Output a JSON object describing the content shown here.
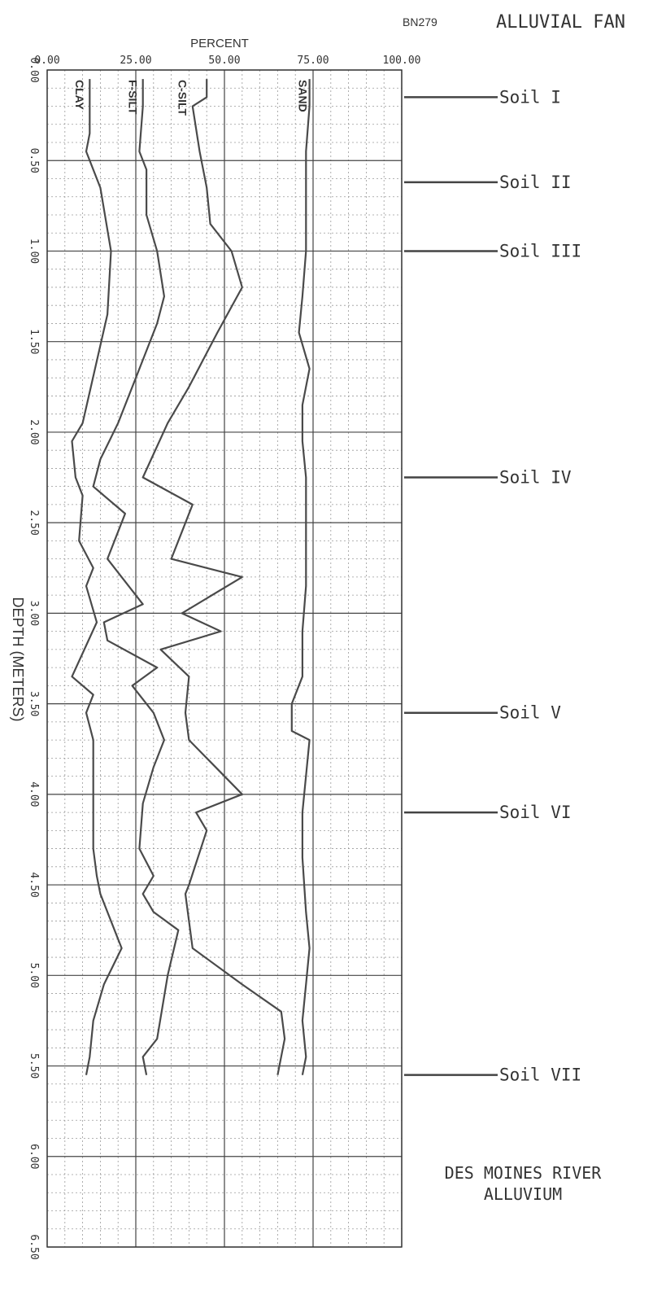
{
  "header": {
    "site_id": "BN279",
    "title": "ALLUVIAL FAN"
  },
  "chart_data": {
    "type": "line",
    "xlabel": "PERCENT",
    "ylabel": "DEPTH (METERS)",
    "xlim": [
      0,
      100
    ],
    "ylim": [
      0,
      6.5
    ],
    "x_ticks": [
      "0.00",
      "25.00",
      "50.00",
      "75.00",
      "100.00"
    ],
    "y_ticks": [
      "0.00",
      "0.50",
      "1.00",
      "1.50",
      "2.00",
      "2.50",
      "3.00",
      "3.50",
      "4.00",
      "4.50",
      "5.00",
      "5.50",
      "6.00",
      "6.50"
    ],
    "series": [
      {
        "name": "CLAY",
        "points": [
          [
            12,
            0.05
          ],
          [
            12,
            0.35
          ],
          [
            11,
            0.45
          ],
          [
            15,
            0.65
          ],
          [
            18,
            1.0
          ],
          [
            17,
            1.35
          ],
          [
            10,
            1.95
          ],
          [
            7,
            2.05
          ],
          [
            8,
            2.25
          ],
          [
            10,
            2.35
          ],
          [
            9,
            2.6
          ],
          [
            13,
            2.75
          ],
          [
            11,
            2.85
          ],
          [
            14,
            3.05
          ],
          [
            7,
            3.35
          ],
          [
            13,
            3.45
          ],
          [
            11,
            3.55
          ],
          [
            13,
            3.7
          ],
          [
            13,
            4.1
          ],
          [
            13,
            4.3
          ],
          [
            14,
            4.45
          ],
          [
            15,
            4.55
          ],
          [
            21,
            4.85
          ],
          [
            16,
            5.05
          ],
          [
            13,
            5.25
          ],
          [
            12,
            5.45
          ],
          [
            11,
            5.55
          ]
        ]
      },
      {
        "name": "F-SILT",
        "points": [
          [
            27,
            0.05
          ],
          [
            27,
            0.2
          ],
          [
            26,
            0.45
          ],
          [
            28,
            0.55
          ],
          [
            28,
            0.8
          ],
          [
            31,
            1.0
          ],
          [
            33,
            1.25
          ],
          [
            31,
            1.4
          ],
          [
            26,
            1.65
          ],
          [
            20,
            1.95
          ],
          [
            15,
            2.15
          ],
          [
            13,
            2.3
          ],
          [
            22,
            2.45
          ],
          [
            17,
            2.7
          ],
          [
            27,
            2.95
          ],
          [
            16,
            3.05
          ],
          [
            17,
            3.15
          ],
          [
            31,
            3.3
          ],
          [
            24,
            3.4
          ],
          [
            30,
            3.55
          ],
          [
            33,
            3.7
          ],
          [
            30,
            3.85
          ],
          [
            27,
            4.05
          ],
          [
            26,
            4.3
          ],
          [
            30,
            4.45
          ],
          [
            27,
            4.55
          ],
          [
            30,
            4.65
          ],
          [
            37,
            4.75
          ],
          [
            34,
            5.0
          ],
          [
            31,
            5.35
          ],
          [
            27,
            5.45
          ],
          [
            28,
            5.55
          ]
        ]
      },
      {
        "name": "C-SILT",
        "points": [
          [
            45,
            0.05
          ],
          [
            45,
            0.15
          ],
          [
            41,
            0.2
          ],
          [
            43,
            0.45
          ],
          [
            45,
            0.65
          ],
          [
            46,
            0.85
          ],
          [
            52,
            1.0
          ],
          [
            55,
            1.2
          ],
          [
            48,
            1.45
          ],
          [
            40,
            1.75
          ],
          [
            34,
            1.95
          ],
          [
            27,
            2.25
          ],
          [
            41,
            2.4
          ],
          [
            38,
            2.55
          ],
          [
            35,
            2.7
          ],
          [
            55,
            2.8
          ],
          [
            38,
            3.0
          ],
          [
            49,
            3.1
          ],
          [
            32,
            3.2
          ],
          [
            40,
            3.35
          ],
          [
            39,
            3.55
          ],
          [
            40,
            3.7
          ],
          [
            55,
            4.0
          ],
          [
            42,
            4.1
          ],
          [
            45,
            4.2
          ],
          [
            40,
            4.5
          ],
          [
            39,
            4.55
          ],
          [
            40,
            4.7
          ],
          [
            41,
            4.85
          ],
          [
            55,
            5.05
          ],
          [
            66,
            5.2
          ],
          [
            67,
            5.35
          ],
          [
            65,
            5.55
          ]
        ]
      },
      {
        "name": "SAND",
        "points": [
          [
            74,
            0.05
          ],
          [
            74,
            0.2
          ],
          [
            73,
            0.45
          ],
          [
            73,
            0.75
          ],
          [
            73,
            1.0
          ],
          [
            72,
            1.25
          ],
          [
            71,
            1.45
          ],
          [
            74,
            1.65
          ],
          [
            72,
            1.85
          ],
          [
            72,
            2.05
          ],
          [
            73,
            2.25
          ],
          [
            73,
            2.6
          ],
          [
            73,
            2.85
          ],
          [
            72,
            3.1
          ],
          [
            72,
            3.35
          ],
          [
            69,
            3.5
          ],
          [
            69,
            3.65
          ],
          [
            74,
            3.7
          ],
          [
            72,
            4.1
          ],
          [
            72,
            4.35
          ],
          [
            73,
            4.65
          ],
          [
            74,
            4.85
          ],
          [
            73,
            5.05
          ],
          [
            72,
            5.25
          ],
          [
            73,
            5.45
          ],
          [
            72,
            5.55
          ]
        ]
      }
    ],
    "annotations": [
      {
        "text": "Soil I",
        "depth": 0.15
      },
      {
        "text": "Soil II",
        "depth": 0.62
      },
      {
        "text": "Soil III",
        "depth": 1.0
      },
      {
        "text": "Soil IV",
        "depth": 2.25
      },
      {
        "text": "Soil V",
        "depth": 3.55
      },
      {
        "text": "Soil VI",
        "depth": 4.1
      },
      {
        "text": "Soil VII",
        "depth": 5.55
      }
    ],
    "region_note_lines": [
      "DES MOINES RIVER",
      "ALLUVIUM"
    ],
    "grid": true
  }
}
